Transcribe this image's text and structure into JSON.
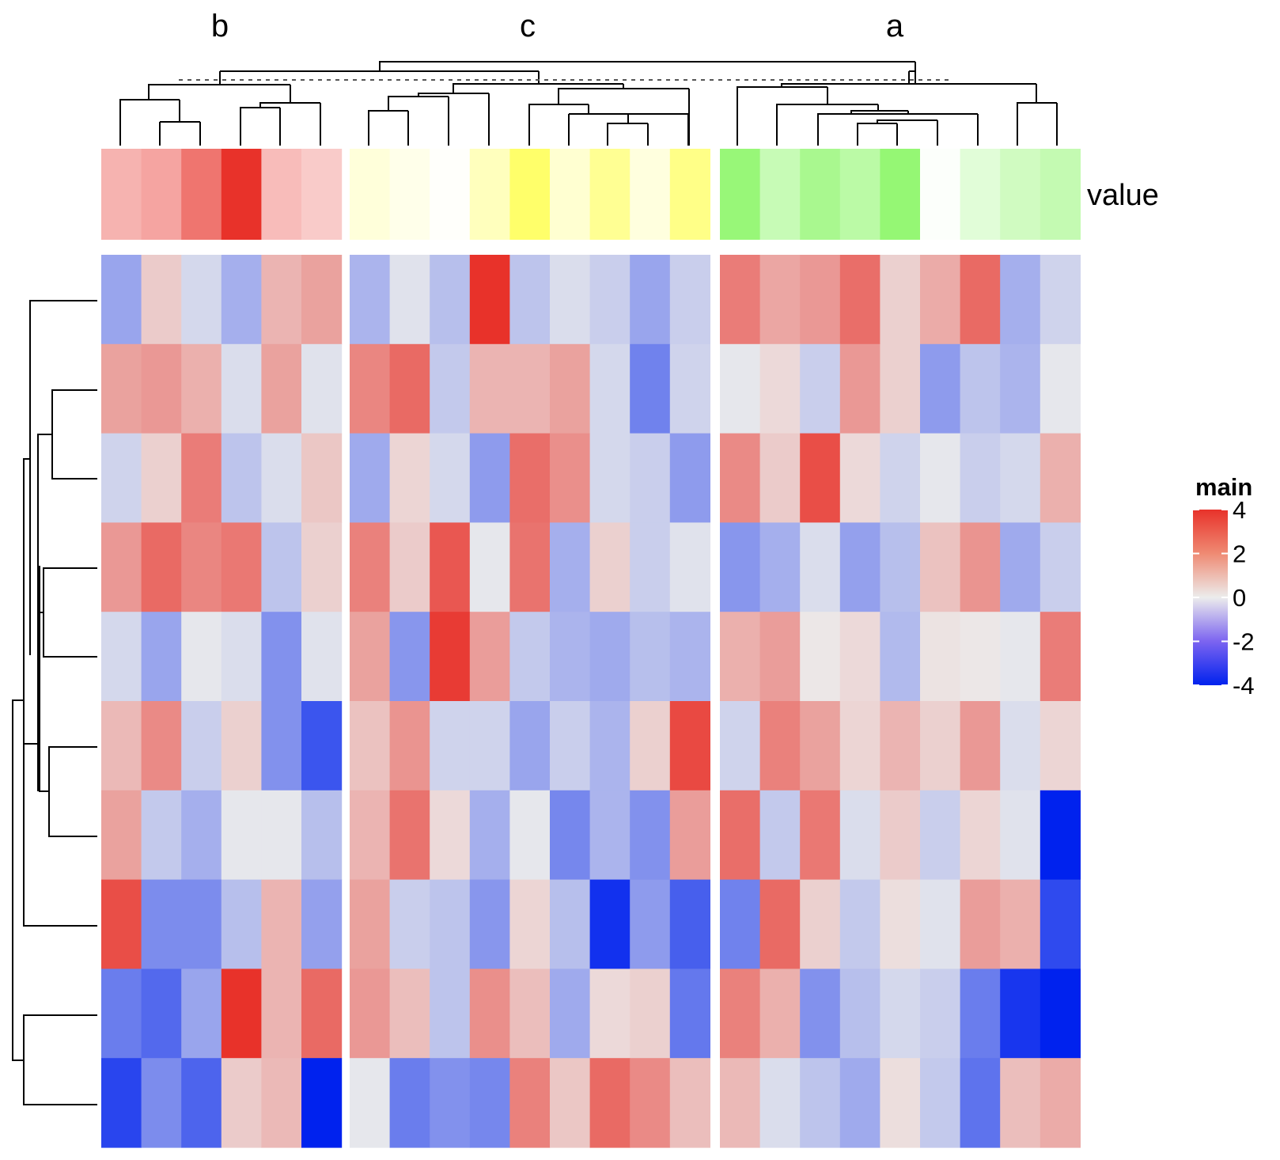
{
  "chart_data": {
    "type": "heatmap",
    "column_groups": [
      {
        "label": "b",
        "columns": 6
      },
      {
        "label": "c",
        "columns": 9
      },
      {
        "label": "a",
        "columns": 9
      }
    ],
    "annotation": {
      "label": "value",
      "values": {
        "b": [
          1.6,
          1.9,
          2.9,
          4.3,
          1.4,
          1.1
        ],
        "c": [
          0.9,
          0.5,
          0.1,
          1.6,
          3.6,
          1.1,
          2.6,
          0.8,
          2.9
        ],
        "a": [
          3.5,
          1.9,
          2.9,
          2.3,
          3.6,
          0.1,
          1.0,
          1.6,
          2.0
        ]
      },
      "colors": {
        "b": "#e8322a",
        "c": "#ffff4d",
        "a": "#80f559"
      }
    },
    "matrix": {
      "b": [
        [
          -1.4,
          0.7,
          -0.4,
          -1.2,
          1.2,
          1.6
        ],
        [
          1.6,
          1.8,
          1.3,
          -0.3,
          1.6,
          -0.2
        ],
        [
          -0.5,
          0.6,
          2.4,
          -0.8,
          -0.3,
          0.8
        ],
        [
          1.8,
          2.8,
          2.2,
          2.5,
          -0.8,
          0.6
        ],
        [
          -0.4,
          -1.4,
          -0.1,
          -0.3,
          -1.8,
          -0.2
        ],
        [
          1.1,
          2.1,
          -0.6,
          0.6,
          -1.8,
          -3.0
        ],
        [
          1.6,
          -0.7,
          -1.2,
          -0.1,
          -0.1,
          -0.9
        ],
        [
          3.4,
          -1.9,
          -1.9,
          -0.9,
          1.2,
          -1.5
        ],
        [
          -2.2,
          -2.6,
          -1.4,
          4.0,
          1.2,
          2.8
        ],
        [
          -3.3,
          -1.9,
          -2.7,
          0.7,
          1.1,
          -4.4
        ]
      ],
      "c": [
        [
          -1.1,
          -0.2,
          -0.9,
          4.2,
          -0.8,
          -0.3,
          -0.6,
          -1.4,
          -0.6
        ],
        [
          2.2,
          2.8,
          -0.7,
          1.2,
          1.2,
          1.6,
          -0.4,
          -2.1,
          -0.5
        ],
        [
          -1.3,
          0.5,
          -0.4,
          -1.6,
          2.7,
          2.0,
          -0.4,
          -0.6,
          -1.6
        ],
        [
          2.3,
          0.7,
          3.2,
          -0.1,
          2.6,
          -1.2,
          0.6,
          -0.6,
          -0.2
        ],
        [
          1.6,
          -1.7,
          3.8,
          1.7,
          -0.7,
          -1.1,
          -1.3,
          -0.9,
          -1.1
        ],
        [
          0.9,
          1.9,
          -0.5,
          -0.5,
          -1.4,
          -0.6,
          -1.1,
          0.6,
          3.5
        ],
        [
          1.2,
          2.6,
          0.4,
          -1.2,
          -0.1,
          -2.0,
          -1.1,
          -1.8,
          1.7
        ],
        [
          1.6,
          -0.6,
          -0.8,
          -1.7,
          0.5,
          -0.9,
          -3.7,
          -1.6,
          -2.8
        ],
        [
          1.8,
          1.0,
          -0.8,
          2.0,
          1.0,
          -1.3,
          0.4,
          0.6,
          -2.3
        ],
        [
          -0.1,
          -2.2,
          -1.8,
          -2.0,
          2.3,
          0.8,
          2.8,
          2.1,
          1.0
        ]
      ],
      "a": [
        [
          2.4,
          1.5,
          1.8,
          2.7,
          0.6,
          1.4,
          2.8,
          -1.2,
          -0.5
        ],
        [
          -0.1,
          0.4,
          -0.6,
          1.8,
          0.6,
          -1.6,
          -0.8,
          -1.1,
          -0.1
        ],
        [
          2.1,
          0.7,
          3.4,
          0.4,
          -0.5,
          -0.1,
          -0.6,
          -0.4,
          1.3
        ],
        [
          -1.7,
          -1.2,
          -0.3,
          -1.5,
          -0.9,
          0.9,
          1.9,
          -1.3,
          -0.6
        ],
        [
          1.3,
          1.7,
          0.1,
          0.4,
          -1.0,
          0.2,
          0.1,
          -0.1,
          2.4
        ],
        [
          -0.5,
          2.3,
          1.6,
          0.5,
          1.2,
          0.6,
          1.8,
          -0.3,
          0.5
        ],
        [
          2.7,
          -0.7,
          2.5,
          -0.3,
          0.7,
          -0.6,
          0.5,
          -0.2,
          -4.5
        ],
        [
          -2.1,
          2.8,
          0.6,
          -0.7,
          0.3,
          -0.2,
          1.7,
          1.3,
          -3.2
        ],
        [
          2.3,
          1.3,
          -1.8,
          -0.9,
          -0.4,
          -0.6,
          -2.2,
          -3.6,
          -4.4
        ],
        [
          1.1,
          -0.3,
          -0.8,
          -1.3,
          0.3,
          -0.7,
          -2.4,
          1.0,
          1.4
        ]
      ]
    },
    "legend": {
      "title": "main",
      "ticks": [
        4,
        2,
        0,
        -2,
        -4
      ],
      "tick_labels": [
        "4",
        "2",
        "0",
        "-2",
        "-4"
      ],
      "colors": {
        "low": "#0022ee",
        "mid": "#ececec",
        "high": "#e8322a"
      },
      "range": [
        -4,
        4
      ]
    }
  }
}
